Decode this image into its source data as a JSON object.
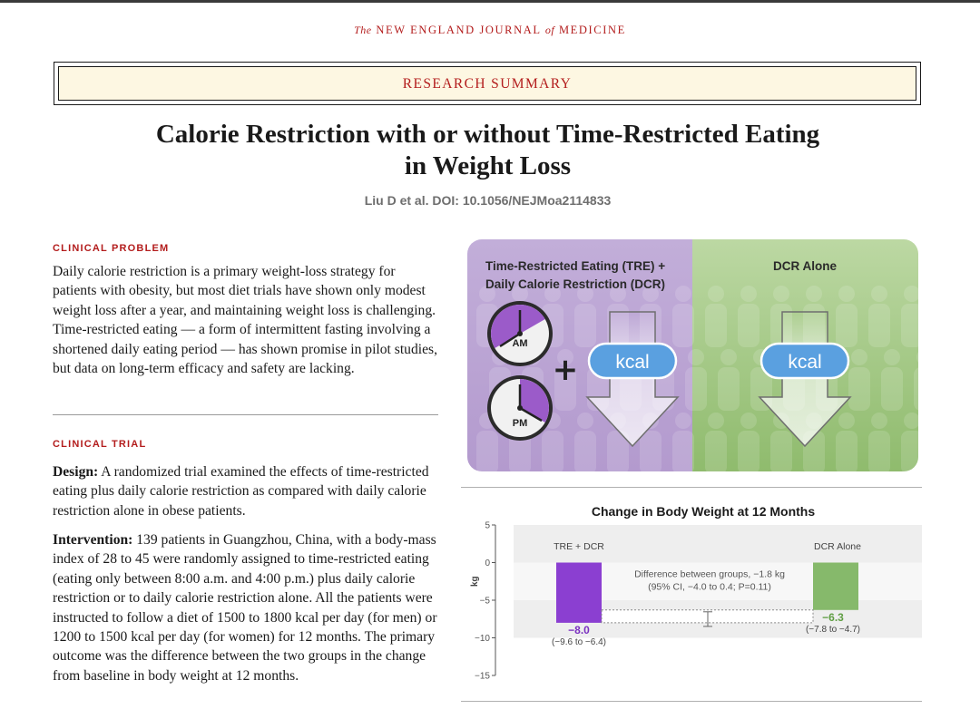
{
  "journal": {
    "prefix": "The",
    "name_a": "NEW ENGLAND JOURNAL",
    "of": "of",
    "name_b": "MEDICINE"
  },
  "banner": "RESEARCH SUMMARY",
  "title_line1": "Calorie Restriction with or without Time-Restricted Eating",
  "title_line2": "in Weight Loss",
  "byline": "Liu D et al. DOI: 10.1056/NEJMoa2114833",
  "clinical_problem": {
    "heading": "CLINICAL PROBLEM",
    "text": "Daily calorie restriction is a primary weight-loss strategy for patients with obesity, but most diet trials have shown only modest weight loss after a year, and maintaining weight loss is challenging. Time-restricted eating — a form of intermittent fasting involving a shortened daily eating period — has shown promise in pilot studies, but data on long-term efficacy and safety are lacking."
  },
  "clinical_trial": {
    "heading": "CLINICAL TRIAL",
    "design_label": "Design:",
    "design_text": " A randomized trial examined the effects of time-restricted eating plus daily calorie restriction as compared with daily calorie restriction alone in obese patients.",
    "intervention_label": "Intervention:",
    "intervention_text": " 139 patients in Guangzhou, China, with a body-mass index of 28 to 45 were randomly assigned to time-restricted eating (eating only between 8:00 a.m. and 4:00 p.m.) plus daily calorie restriction or to daily calorie restriction alone. All the patients were instructed to follow a diet of 1500 to 1800 kcal per day (for men) or 1200 to 1500 kcal per day (for women) for 12 months. The primary outcome was the difference between the two groups in the change from baseline in body weight at 12 months."
  },
  "infographic": {
    "tre_line1": "Time-Restricted Eating (TRE) +",
    "tre_line2": "Daily Calorie Restriction (DCR)",
    "dcr_title": "DCR Alone",
    "am": "AM",
    "pm": "PM",
    "plus": "+",
    "kcal": "kcal",
    "colors": {
      "purple_bg": "#c6b3dc",
      "green_bg": "#a9cc8a",
      "clock_fill": "#9b5bc9"
    },
    "icons": [
      "clock-icon",
      "downward-arrow-icon",
      "plus-icon",
      "people-silhouette-icon"
    ]
  },
  "chart_data": {
    "type": "bar",
    "title": "Change in Body Weight at 12 Months",
    "ylabel": "kg",
    "ylim": [
      -15,
      5
    ],
    "yticks": [
      5,
      0,
      -5,
      -10,
      -15
    ],
    "categories": [
      "TRE + DCR",
      "DCR Alone"
    ],
    "values": [
      -8.0,
      -6.3
    ],
    "value_labels": [
      "−8.0",
      "−6.3"
    ],
    "ci_labels": [
      "(−9.6 to −6.4)",
      "(−7.8 to −4.7)"
    ],
    "colors": [
      "#8b3fd1",
      "#86b96b"
    ],
    "difference_line1": "Difference between groups, −1.8 kg",
    "difference_line2": "(95% CI, −4.0 to 0.4; P=0.11)",
    "difference": {
      "value": -1.8,
      "ci": [
        -4.0,
        0.4
      ]
    },
    "grid": "alternating horizontal bands"
  }
}
